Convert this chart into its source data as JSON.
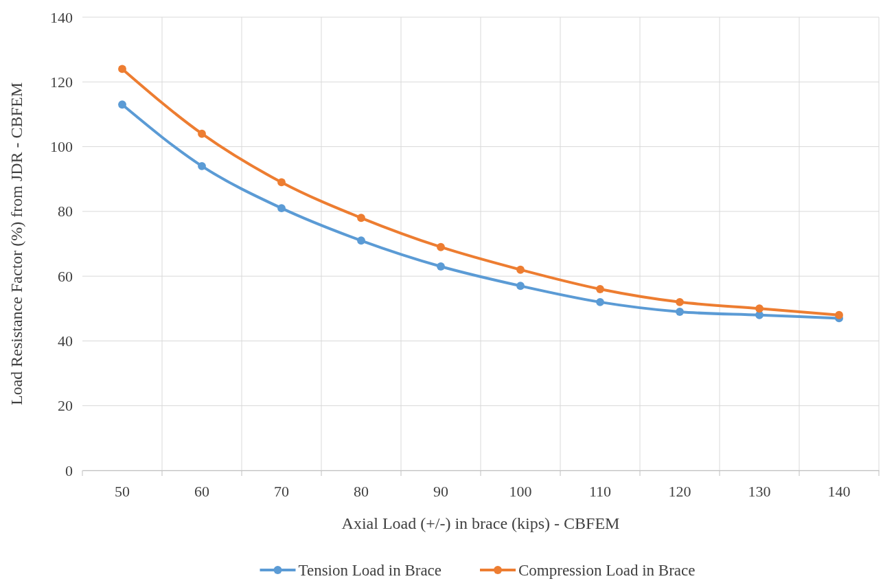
{
  "chart_data": {
    "type": "line",
    "xlabel": "Axial Load (+/-) in brace (kips) - CBFEM",
    "ylabel": "Load Resistance Factor (%)  from JDR - CBFEM",
    "categories": [
      "50",
      "60",
      "70",
      "80",
      "90",
      "100",
      "110",
      "120",
      "130",
      "140"
    ],
    "series": [
      {
        "name": "Tension Load in Brace",
        "color": "#5b9bd5",
        "values": [
          113,
          94,
          81,
          71,
          63,
          57,
          52,
          49,
          48,
          47
        ]
      },
      {
        "name": "Compression Load in Brace",
        "color": "#ed7d31",
        "values": [
          124,
          104,
          89,
          78,
          69,
          62,
          56,
          52,
          50,
          48
        ]
      }
    ],
    "ylim": [
      0,
      140
    ],
    "yticks": [
      0,
      20,
      40,
      60,
      80,
      100,
      120,
      140
    ],
    "grid": true,
    "legend": "bottom",
    "marker": "circle",
    "line_style": "solid"
  }
}
